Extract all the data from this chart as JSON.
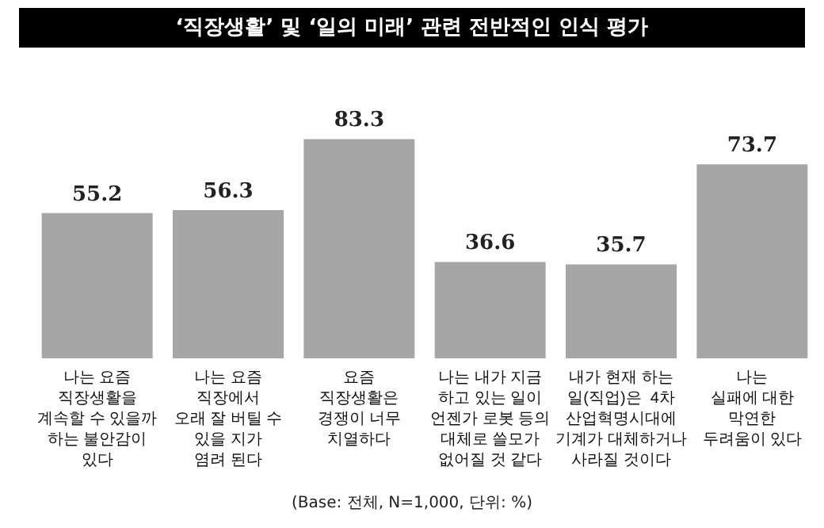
{
  "chart_data": {
    "type": "bar",
    "title": "‘직장생활’ 및 ‘일의 미래’ 관련 전반적인 인식 평가",
    "categories": [
      "나는 요즘\n직장생활을\n계속할 수 있을까\n하는 불안감이\n있다",
      "나는 요즘\n직장에서\n오래 잘 버틸 수\n있을 지가\n염려 된다",
      "요즘\n직장생활은\n경쟁이 너무\n치열하다",
      "나는 내가 지금\n하고 있는 일이\n언젠가 로봇 등의\n대체로 쓸모가\n없어질 것 같다",
      "내가 현재 하는\n일(직업)은  4차\n산업혁명시대에\n기계가 대체하거나\n사라질 것이다",
      "나는\n실패에 대한\n막연한\n두려움이 있다"
    ],
    "values": [
      55.2,
      56.3,
      83.3,
      36.6,
      35.7,
      73.7
    ],
    "color": "#a6a6a6",
    "data_labels": true,
    "annotations": [
      "(Base: 전체, N=1,000, 단위: %)"
    ]
  }
}
